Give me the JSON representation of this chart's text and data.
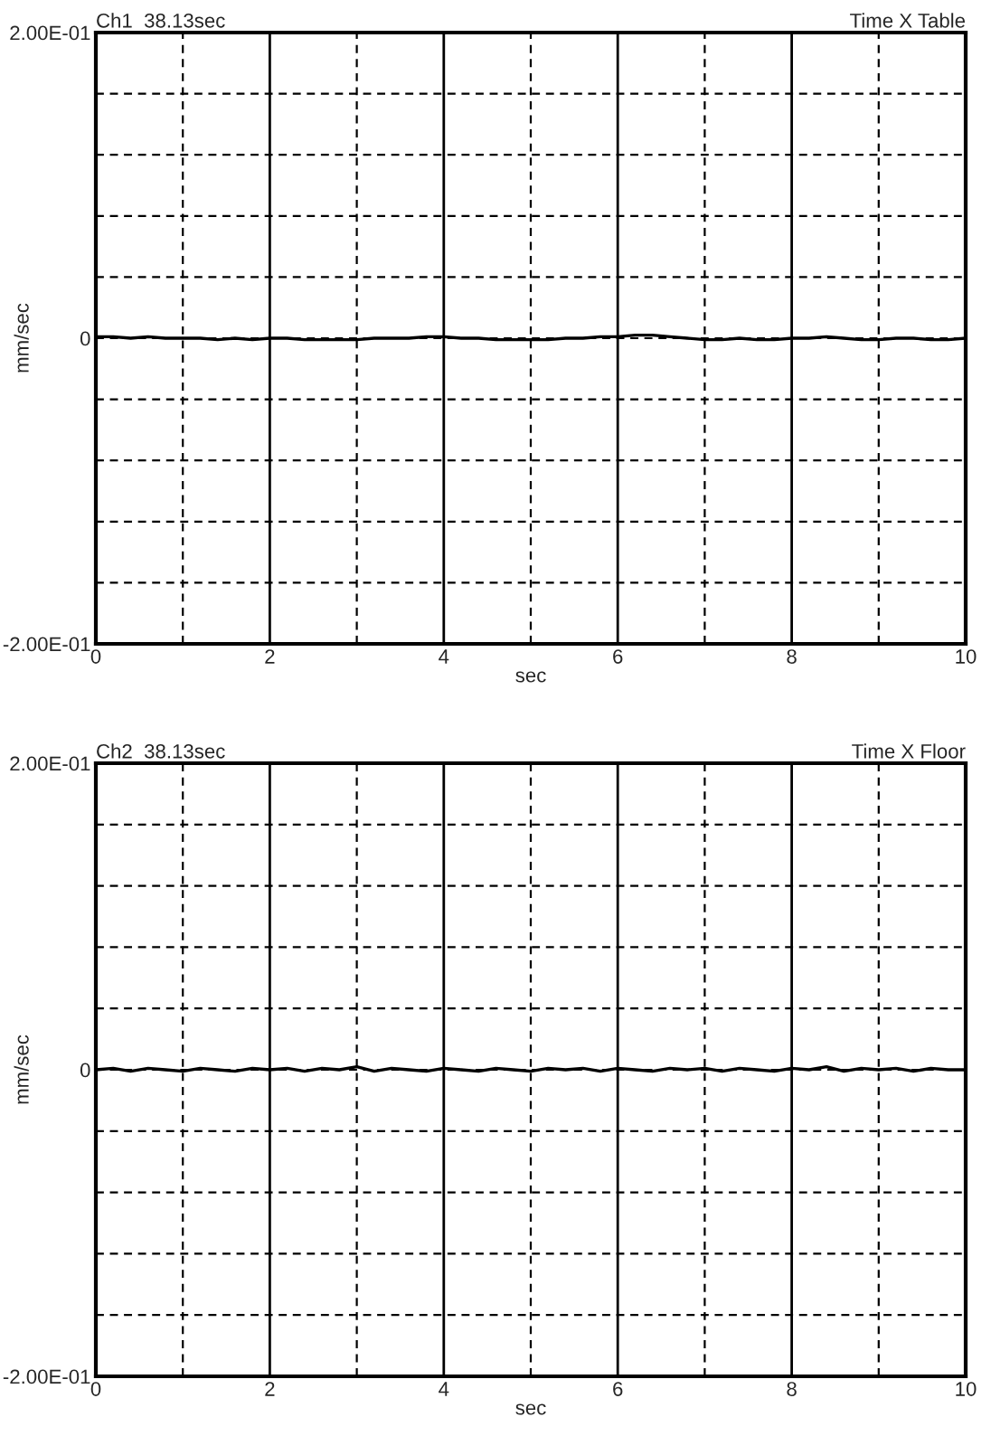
{
  "chart_data": [
    {
      "type": "line",
      "title": "Ch1  38.13sec",
      "subtitle": "Time X Table",
      "xlabel": "sec",
      "ylabel": "mm/sec",
      "x": [
        0,
        0.2,
        0.4,
        0.6,
        0.8,
        1,
        1.2,
        1.4,
        1.6,
        1.8,
        2,
        2.2,
        2.4,
        2.6,
        2.8,
        3,
        3.2,
        3.4,
        3.6,
        3.8,
        4,
        4.2,
        4.4,
        4.6,
        4.8,
        5,
        5.2,
        5.4,
        5.6,
        5.8,
        6,
        6.2,
        6.4,
        6.6,
        6.8,
        7,
        7.2,
        7.4,
        7.6,
        7.8,
        8,
        8.2,
        8.4,
        8.6,
        8.8,
        9,
        9.2,
        9.4,
        9.6,
        9.8,
        10
      ],
      "series": [
        {
          "color": "#000000",
          "values": [
            0.001,
            0.001,
            0,
            0.001,
            0,
            0,
            0,
            -0.001,
            0,
            -0.001,
            0,
            0,
            -0.001,
            -0.001,
            -0.001,
            -0.001,
            0,
            0,
            0,
            0.001,
            0.001,
            0,
            0,
            -0.001,
            -0.001,
            -0.001,
            -0.001,
            0,
            0,
            0.001,
            0.001,
            0.002,
            0.002,
            0.001,
            0,
            -0.001,
            -0.001,
            0,
            -0.001,
            -0.001,
            0,
            0,
            0.001,
            0,
            -0.001,
            -0.001,
            0,
            0,
            -0.001,
            -0.001,
            0
          ]
        }
      ],
      "xlim": [
        0,
        10
      ],
      "xticks": [
        0,
        {
          "value": 1,
          "label": null
        },
        2,
        {
          "value": 3,
          "label": null
        },
        4,
        {
          "value": 5,
          "label": null
        },
        6,
        {
          "value": 7,
          "label": null
        },
        8,
        {
          "value": 9,
          "label": null
        },
        10
      ],
      "ylim": [
        -0.2,
        0.2
      ],
      "yticks": [
        {
          "value": -0.2,
          "label": "-2.00E-01"
        },
        {
          "value": -0.16,
          "label": null
        },
        {
          "value": -0.12,
          "label": null
        },
        {
          "value": -0.08,
          "label": null
        },
        {
          "value": -0.04,
          "label": null
        },
        0,
        {
          "value": 0.04,
          "label": null
        },
        {
          "value": 0.08,
          "label": null
        },
        {
          "value": 0.12,
          "label": null
        },
        {
          "value": 0.16,
          "label": null
        },
        {
          "value": 0.2,
          "label": "2.00E-01"
        }
      ],
      "grid": true,
      "legend": false
    },
    {
      "type": "line",
      "title": "Ch2  38.13sec",
      "subtitle": "Time X Floor",
      "xlabel": "sec",
      "ylabel": "mm/sec",
      "x": [
        0,
        0.2,
        0.4,
        0.6,
        0.8,
        1,
        1.2,
        1.4,
        1.6,
        1.8,
        2,
        2.2,
        2.4,
        2.6,
        2.8,
        3,
        3.2,
        3.4,
        3.6,
        3.8,
        4,
        4.2,
        4.4,
        4.6,
        4.8,
        5,
        5.2,
        5.4,
        5.6,
        5.8,
        6,
        6.2,
        6.4,
        6.6,
        6.8,
        7,
        7.2,
        7.4,
        7.6,
        7.8,
        8,
        8.2,
        8.4,
        8.6,
        8.8,
        9,
        9.2,
        9.4,
        9.6,
        9.8,
        10
      ],
      "series": [
        {
          "color": "#000000",
          "values": [
            0,
            0.001,
            -0.001,
            0.001,
            0,
            -0.001,
            0.001,
            0,
            -0.001,
            0.001,
            0,
            0.001,
            -0.001,
            0.001,
            0,
            0.002,
            -0.001,
            0.001,
            0,
            -0.001,
            0.001,
            0,
            -0.001,
            0.001,
            0,
            -0.001,
            0.001,
            0,
            0.001,
            -0.001,
            0.001,
            0,
            -0.001,
            0.001,
            0,
            0.001,
            -0.001,
            0.001,
            0,
            -0.001,
            0.001,
            0,
            0.002,
            -0.001,
            0.001,
            0,
            0.001,
            -0.001,
            0.001,
            0,
            0
          ]
        }
      ],
      "xlim": [
        0,
        10
      ],
      "xticks": [
        0,
        {
          "value": 1,
          "label": null
        },
        2,
        {
          "value": 3,
          "label": null
        },
        4,
        {
          "value": 5,
          "label": null
        },
        6,
        {
          "value": 7,
          "label": null
        },
        8,
        {
          "value": 9,
          "label": null
        },
        10
      ],
      "ylim": [
        -0.2,
        0.2
      ],
      "yticks": [
        {
          "value": -0.2,
          "label": "-2.00E-01"
        },
        {
          "value": -0.16,
          "label": null
        },
        {
          "value": -0.12,
          "label": null
        },
        {
          "value": -0.08,
          "label": null
        },
        {
          "value": -0.04,
          "label": null
        },
        0,
        {
          "value": 0.04,
          "label": null
        },
        {
          "value": 0.08,
          "label": null
        },
        {
          "value": 0.12,
          "label": null
        },
        {
          "value": 0.16,
          "label": null
        },
        {
          "value": 0.2,
          "label": "2.00E-01"
        }
      ],
      "grid": true,
      "legend": false
    }
  ]
}
